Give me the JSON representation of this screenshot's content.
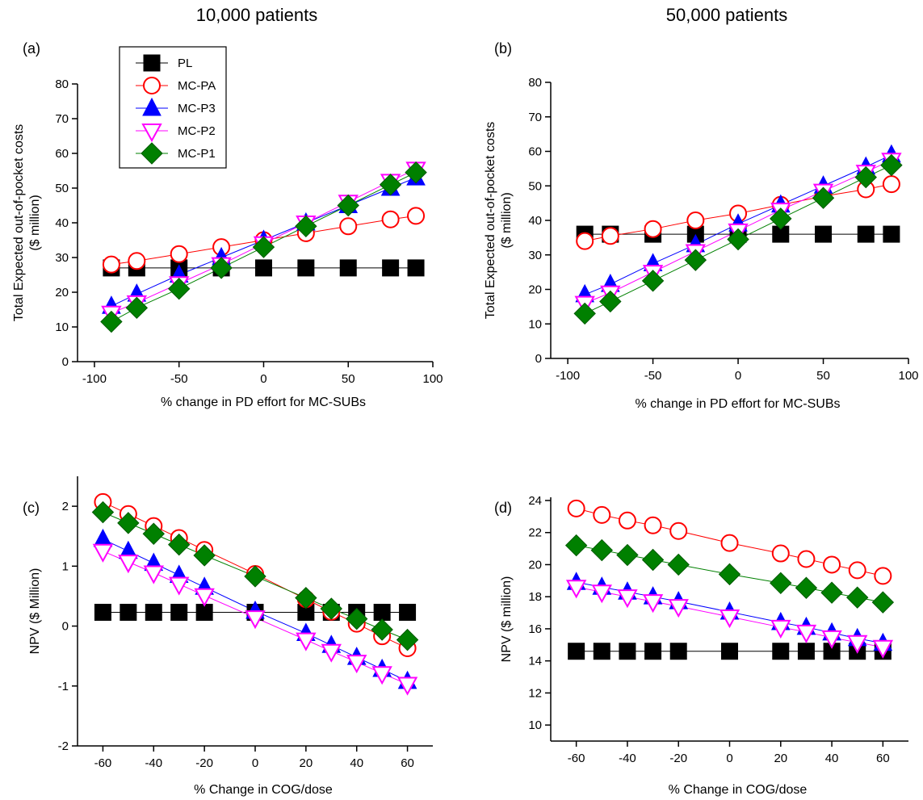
{
  "figure": {
    "column_titles": [
      "10,000 patients",
      "50,000 patients"
    ]
  },
  "chart_data": [
    {
      "type": "line",
      "panel_label": "(a)",
      "xlabel": "% change in PD effort for MC-SUBs",
      "ylabel_lines": [
        "Total Expected out-of-pocket costs",
        "($ million)"
      ],
      "xlim": [
        -110,
        100
      ],
      "ylim": [
        0,
        80
      ],
      "xticks": [
        -100,
        -50,
        0,
        50,
        100
      ],
      "yticks": [
        0,
        10,
        20,
        30,
        40,
        50,
        60,
        70,
        80
      ],
      "x": [
        -90,
        -75,
        -50,
        -25,
        0,
        25,
        50,
        75,
        90
      ],
      "legend": "top-left",
      "series": [
        {
          "name": "PL",
          "values": [
            27,
            27,
            27,
            27,
            27,
            27,
            27,
            27,
            27
          ]
        },
        {
          "name": "MC-PA",
          "values": [
            28,
            29,
            31,
            33,
            35,
            37,
            39,
            41,
            42
          ]
        },
        {
          "name": "MC-P3",
          "values": [
            16,
            19.5,
            25,
            30,
            35,
            40,
            45,
            50,
            53
          ]
        },
        {
          "name": "MC-P2",
          "values": [
            14,
            17,
            22.5,
            28,
            34,
            40,
            46,
            52,
            55.5
          ]
        },
        {
          "name": "MC-P1",
          "values": [
            11.5,
            15.5,
            21,
            27,
            33,
            39,
            45,
            51,
            54.5
          ]
        }
      ]
    },
    {
      "type": "line",
      "panel_label": "(b)",
      "xlabel": "% change in PD effort for MC-SUBs",
      "ylabel_lines": [
        "Total Expected out-of-pocket costs",
        "($ million)"
      ],
      "xlim": [
        -110,
        100
      ],
      "ylim": [
        0,
        80
      ],
      "xticks": [
        -100,
        -50,
        0,
        50,
        100
      ],
      "yticks": [
        0,
        10,
        20,
        30,
        40,
        50,
        60,
        70,
        80
      ],
      "x": [
        -90,
        -75,
        -50,
        -25,
        0,
        25,
        50,
        75,
        90
      ],
      "series": [
        {
          "name": "PL",
          "values": [
            36,
            36,
            36,
            36,
            36,
            36,
            36,
            36,
            36
          ]
        },
        {
          "name": "MC-PA",
          "values": [
            34,
            35.5,
            37.5,
            40,
            42,
            44.5,
            47,
            49,
            50.5
          ]
        },
        {
          "name": "MC-P3",
          "values": [
            18.5,
            21.5,
            27.5,
            33,
            39,
            44.5,
            50,
            55.5,
            59
          ]
        },
        {
          "name": "MC-P2",
          "values": [
            16,
            19,
            25,
            31,
            37,
            43,
            48.5,
            54,
            57.5
          ]
        },
        {
          "name": "MC-P1",
          "values": [
            13,
            16.5,
            22.5,
            28.5,
            34.5,
            40.5,
            46.5,
            52.5,
            56
          ]
        }
      ]
    },
    {
      "type": "line",
      "panel_label": "(c)",
      "xlabel": "% Change in COG/dose",
      "ylabel_lines": [
        "NPV ($ Million)"
      ],
      "xlim": [
        -70,
        70
      ],
      "ylim": [
        -2,
        2.5
      ],
      "xticks": [
        -60,
        -40,
        -20,
        0,
        20,
        40,
        60
      ],
      "yticks": [
        -2,
        -1,
        0,
        1,
        2
      ],
      "x": [
        -60,
        -50,
        -40,
        -30,
        -20,
        0,
        20,
        30,
        40,
        50,
        60
      ],
      "series": [
        {
          "name": "PL",
          "values": [
            0.23,
            0.23,
            0.23,
            0.23,
            0.23,
            0.23,
            0.23,
            0.23,
            0.23,
            0.23,
            0.23
          ]
        },
        {
          "name": "MC-PA",
          "values": [
            2.07,
            1.87,
            1.67,
            1.47,
            1.27,
            0.87,
            0.45,
            0.24,
            0.04,
            -0.17,
            -0.37
          ]
        },
        {
          "name": "MC-P3",
          "values": [
            1.45,
            1.25,
            1.05,
            0.85,
            0.65,
            0.25,
            -0.12,
            -0.32,
            -0.52,
            -0.72,
            -0.92
          ]
        },
        {
          "name": "MC-P2",
          "values": [
            1.25,
            1.07,
            0.89,
            0.7,
            0.51,
            0.14,
            -0.23,
            -0.42,
            -0.6,
            -0.79,
            -0.97
          ]
        },
        {
          "name": "MC-P1",
          "values": [
            1.9,
            1.72,
            1.54,
            1.36,
            1.18,
            0.83,
            0.47,
            0.29,
            0.12,
            -0.06,
            -0.23
          ]
        }
      ]
    },
    {
      "type": "line",
      "panel_label": "(d)",
      "xlabel": "% Change in COG/dose",
      "ylabel_lines": [
        "NPV ($ million)"
      ],
      "xlim": [
        -70,
        70
      ],
      "ylim": [
        9,
        24.2
      ],
      "xticks": [
        -60,
        -40,
        -20,
        0,
        20,
        40,
        60
      ],
      "yticks": [
        10,
        12,
        14,
        16,
        18,
        20,
        22,
        24
      ],
      "x": [
        -60,
        -50,
        -40,
        -30,
        -20,
        0,
        20,
        30,
        40,
        50,
        60
      ],
      "series": [
        {
          "name": "PL",
          "values": [
            14.6,
            14.6,
            14.6,
            14.6,
            14.6,
            14.6,
            14.6,
            14.6,
            14.6,
            14.6,
            14.6
          ]
        },
        {
          "name": "MC-PA",
          "values": [
            23.5,
            23.1,
            22.75,
            22.45,
            22.1,
            21.35,
            20.7,
            20.35,
            20.0,
            19.65,
            19.3
          ]
        },
        {
          "name": "MC-P3",
          "values": [
            18.9,
            18.6,
            18.3,
            18.0,
            17.7,
            17.05,
            16.4,
            16.1,
            15.75,
            15.4,
            15.1
          ]
        },
        {
          "name": "MC-P2",
          "values": [
            18.6,
            18.3,
            18.0,
            17.7,
            17.4,
            16.75,
            16.1,
            15.8,
            15.45,
            15.15,
            14.85
          ]
        },
        {
          "name": "MC-P1",
          "values": [
            21.2,
            20.9,
            20.6,
            20.3,
            20.0,
            19.4,
            18.85,
            18.55,
            18.25,
            17.95,
            17.65
          ]
        }
      ]
    }
  ],
  "series_styles": {
    "PL": {
      "marker": "square",
      "fill": "#000000",
      "stroke": "#000000",
      "line": "#000000"
    },
    "MC-PA": {
      "marker": "circle-open",
      "fill": "#ffffff",
      "stroke": "#ff0000",
      "line": "#ff0000"
    },
    "MC-P3": {
      "marker": "triangle-up",
      "fill": "#0000ff",
      "stroke": "#0000ff",
      "line": "#0000ff"
    },
    "MC-P2": {
      "marker": "triangle-down-open",
      "fill": "#ffffff",
      "stroke": "#ff00ff",
      "line": "#ff00ff"
    },
    "MC-P1": {
      "marker": "diamond",
      "fill": "#008000",
      "stroke": "#005a00",
      "line": "#008000"
    }
  }
}
